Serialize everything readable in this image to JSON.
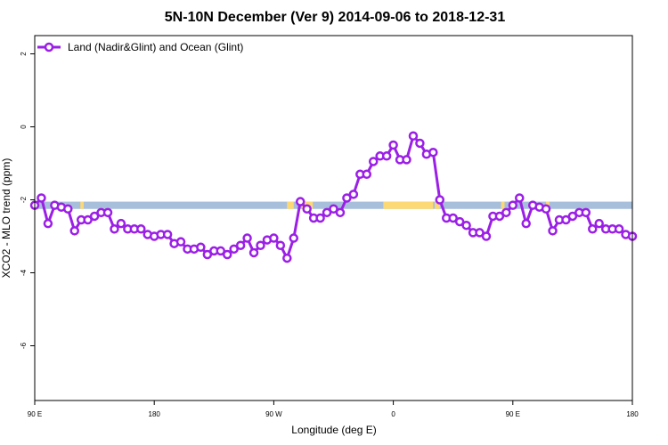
{
  "chart_data": {
    "type": "line",
    "title": "5N-10N December (Ver 9)   2014-09-06 to 2018-12-31",
    "xlabel": "Longitude (deg E)",
    "ylabel": "XCO2 - MLO trend (ppm)",
    "xlim": [
      90,
      450
    ],
    "ylim": [
      -7.5,
      2.5
    ],
    "x_ticks": [
      {
        "value": 90,
        "label": "90 E"
      },
      {
        "value": 162,
        "label": "180"
      },
      {
        "value": 234,
        "label": "90 W"
      },
      {
        "value": 306,
        "label": "0"
      },
      {
        "value": 378,
        "label": "90 E"
      },
      {
        "value": 450,
        "label": "180"
      }
    ],
    "y_ticks": [
      {
        "value": 2,
        "label": "2"
      },
      {
        "value": 0,
        "label": "0"
      },
      {
        "value": -2,
        "label": "-2"
      },
      {
        "value": -4,
        "label": "-4"
      },
      {
        "value": -6,
        "label": "-6"
      }
    ],
    "legend": {
      "position": "top-left",
      "label": "Land (Nadir&Glint) and Ocean (Glint)"
    },
    "colors": {
      "series": "#9b1fe6",
      "ocean_band": "#a8bfdc",
      "land_band": "#fcd975"
    },
    "band": {
      "y_top": -2.05,
      "y_bottom": -2.25
    },
    "land_segments": [
      {
        "x0": 117.5,
        "x1": 119.5
      },
      {
        "x0": 242.0,
        "x1": 246.0
      },
      {
        "x0": 251.0,
        "x1": 257.5
      },
      {
        "x0": 300.0,
        "x1": 330.0
      },
      {
        "x0": 331.0,
        "x1": 334.0
      },
      {
        "x0": 371.0,
        "x1": 373.0
      },
      {
        "x0": 398.0,
        "x1": 400.0
      }
    ],
    "series": [
      {
        "name": "Land (Nadir&Glint) and Ocean (Glint)",
        "x": [
          90,
          94,
          98,
          102,
          106,
          110,
          114,
          118,
          122,
          126,
          130,
          134,
          138,
          142,
          146,
          150,
          154,
          158,
          162,
          166,
          170,
          174,
          178,
          182,
          186,
          190,
          194,
          198,
          202,
          206,
          210,
          214,
          218,
          222,
          226,
          230,
          234,
          238,
          242,
          246,
          250,
          254,
          258,
          262,
          266,
          270,
          274,
          278,
          282,
          286,
          290,
          294,
          298,
          302,
          306,
          310,
          314,
          318,
          322,
          326,
          330,
          334,
          338,
          342,
          346,
          350,
          354,
          358,
          362,
          366,
          370,
          374,
          378,
          382,
          386,
          390,
          394,
          398,
          402,
          406,
          410,
          414,
          418,
          422,
          426,
          430,
          434,
          438,
          442,
          446,
          450
        ],
        "y": [
          -2.15,
          -1.95,
          -2.65,
          -2.15,
          -2.2,
          -2.25,
          -2.85,
          -2.55,
          -2.55,
          -2.45,
          -2.35,
          -2.35,
          -2.8,
          -2.65,
          -2.8,
          -2.8,
          -2.8,
          -2.95,
          -3.0,
          -2.95,
          -2.95,
          -3.2,
          -3.15,
          -3.35,
          -3.35,
          -3.3,
          -3.5,
          -3.4,
          -3.4,
          -3.5,
          -3.35,
          -3.25,
          -3.05,
          -3.45,
          -3.25,
          -3.1,
          -3.05,
          -3.25,
          -3.6,
          -3.05,
          -2.05,
          -2.25,
          -2.5,
          -2.5,
          -2.35,
          -2.25,
          -2.35,
          -1.95,
          -1.85,
          -1.3,
          -1.3,
          -0.95,
          -0.8,
          -0.8,
          -0.5,
          -0.9,
          -0.9,
          -0.25,
          -0.45,
          -0.75,
          -0.7,
          -2.0,
          -2.5,
          -2.5,
          -2.6,
          -2.7,
          -2.9,
          -2.9,
          -3.0,
          -2.45,
          -2.45,
          -2.35,
          -2.15,
          -1.95,
          -2.65,
          -2.15,
          -2.2,
          -2.25,
          -2.85,
          -2.55,
          -2.55,
          -2.45,
          -2.35,
          -2.35,
          -2.8,
          -2.65,
          -2.8,
          -2.8,
          -2.8,
          -2.95,
          -3.0
        ]
      }
    ]
  }
}
